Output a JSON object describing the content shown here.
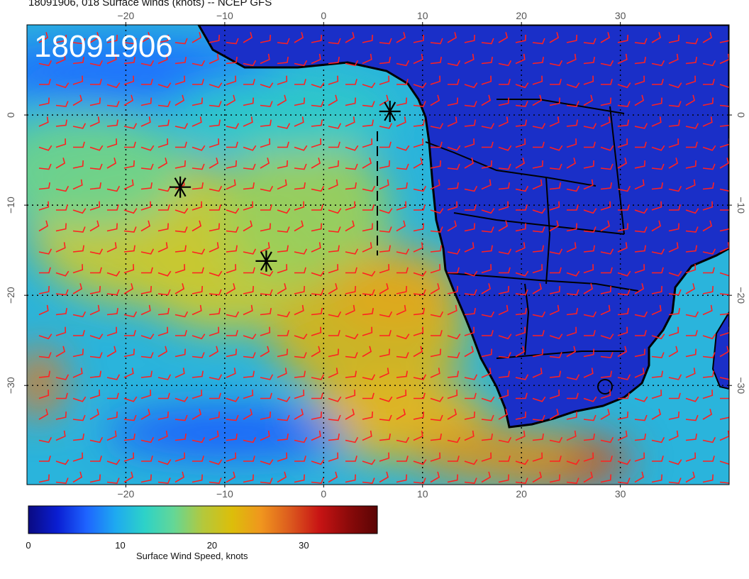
{
  "title": "18091906, 018 Surface winds (knots) -- NCEP GFS",
  "timestamp_overlay": "18091906",
  "map": {
    "lon_range": [
      -30,
      41
    ],
    "lat_range": [
      -41,
      10
    ],
    "lon_ticks": [
      -20,
      -10,
      0,
      10,
      20,
      30
    ],
    "lat_ticks": [
      0,
      -10,
      -20,
      -30
    ],
    "lon_tick_labels": [
      "−20",
      "−10",
      "0",
      "10",
      "20",
      "30"
    ],
    "lat_tick_labels": [
      "0",
      "−10",
      "−20",
      "−30"
    ],
    "barb_color": "#ff2020",
    "coast_color": "#000000"
  },
  "markers": [
    {
      "name": "marker-1",
      "lon": -14.5,
      "lat": -8.0
    },
    {
      "name": "marker-2",
      "lon": -5.8,
      "lat": -16.2
    },
    {
      "name": "marker-3",
      "lon": 6.7,
      "lat": 0.4
    }
  ],
  "colorbar": {
    "range": [
      0,
      38
    ],
    "tick_values": [
      0,
      10,
      20,
      30
    ],
    "tick_labels": [
      "0",
      "10",
      "20",
      "30"
    ],
    "label": "Surface Wind Speed, knots",
    "colors": [
      "#0a0a82",
      "#0a1ed2",
      "#1e64ff",
      "#1eaaf0",
      "#2dd2c8",
      "#64d796",
      "#b4c83c",
      "#dcbe0a",
      "#f0961e",
      "#dc5a1e",
      "#c81414",
      "#8c0a0a",
      "#5a0505"
    ]
  }
}
